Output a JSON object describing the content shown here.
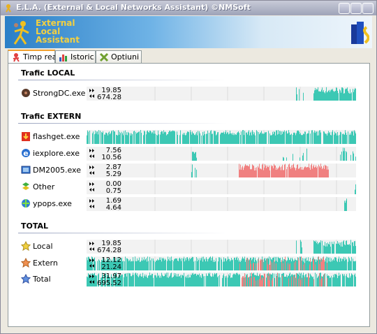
{
  "window": {
    "title": "E.L.A. (External & Local Networks Assistant) ©NMSoft"
  },
  "banner": {
    "line1": "External",
    "line2": "Local",
    "line3": "Assistant"
  },
  "tabs": [
    "Timp real",
    "Istoric",
    "Optiuni"
  ],
  "sections": [
    {
      "title": "Trafic LOCAL",
      "rows": [
        {
          "name": "StrongDC.exe",
          "up": "19.85",
          "down": "674.28"
        }
      ]
    },
    {
      "title": "Trafic EXTERN",
      "rows": [
        {
          "name": "flashget.exe",
          "up": "",
          "down": ""
        },
        {
          "name": "iexplore.exe",
          "up": "7.56",
          "down": "10.56"
        },
        {
          "name": "DM2005.exe",
          "up": "2.87",
          "down": "5.29"
        },
        {
          "name": "Other",
          "up": "0.00",
          "down": "0.75"
        },
        {
          "name": "ypops.exe",
          "up": "1.69",
          "down": "4.64"
        }
      ]
    },
    {
      "title": "TOTAL",
      "rows": [
        {
          "name": "Local",
          "up": "19.85",
          "down": "674.28"
        },
        {
          "name": "Extern",
          "up": "12.12",
          "down": "21.24"
        },
        {
          "name": "Total",
          "up": "31.97",
          "down": "695.52"
        }
      ]
    }
  ]
}
